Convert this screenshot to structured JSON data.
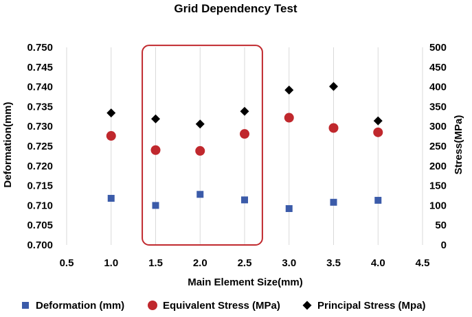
{
  "chart_data": {
    "type": "scatter",
    "title": "Grid Dependency Test",
    "xlabel": "Main Element Size(mm)",
    "ylabel": "Deformation(mm)",
    "y2label": "Stress(MPa)",
    "xlim": [
      0.5,
      4.5
    ],
    "xticks": [
      0.5,
      1.0,
      1.5,
      2.0,
      2.5,
      3.0,
      3.5,
      4.0,
      4.5
    ],
    "xtick_labels": [
      "0.5",
      "1.0",
      "1.5",
      "2.0",
      "2.5",
      "3.0",
      "3.5",
      "4.0",
      "4.5"
    ],
    "ylim": [
      0.7,
      0.75
    ],
    "yticks": [
      0.7,
      0.705,
      0.71,
      0.715,
      0.72,
      0.725,
      0.73,
      0.735,
      0.74,
      0.745,
      0.75
    ],
    "ytick_labels": [
      "0.700",
      "0.705",
      "0.710",
      "0.715",
      "0.720",
      "0.725",
      "0.730",
      "0.735",
      "0.740",
      "0.745",
      "0.750"
    ],
    "y2lim": [
      0,
      500
    ],
    "y2ticks": [
      0,
      50,
      100,
      150,
      200,
      250,
      300,
      350,
      400,
      450,
      500
    ],
    "y2tick_labels": [
      "0",
      "50",
      "100",
      "150",
      "200",
      "250",
      "300",
      "350",
      "400",
      "450",
      "500"
    ],
    "grid": "vertical",
    "legend_position": "bottom",
    "highlight_range_x": [
      1.35,
      2.7
    ],
    "highlight_range_y": [
      0.7,
      0.7505
    ],
    "highlight_color": "#c0282d",
    "series": [
      {
        "name": "Deformation  (mm)",
        "axis": "left",
        "marker": "square",
        "color": "#3b5ba9",
        "x": [
          1.0,
          1.5,
          2.0,
          2.5,
          3.0,
          3.5,
          4.0
        ],
        "y": [
          0.7118,
          0.71,
          0.7128,
          0.7114,
          0.7092,
          0.7108,
          0.7113
        ]
      },
      {
        "name": "Equivalent Stress (MPa)",
        "axis": "right",
        "marker": "circle",
        "color": "#c0282d",
        "x": [
          1.0,
          1.5,
          2.0,
          2.5,
          3.0,
          3.5,
          4.0
        ],
        "y": [
          276,
          240,
          238,
          281,
          322,
          296,
          285
        ]
      },
      {
        "name": "Principal Stress (Mpa)",
        "axis": "right",
        "marker": "diamond",
        "color": "#000000",
        "x": [
          1.0,
          1.5,
          2.0,
          2.5,
          3.0,
          3.5,
          4.0
        ],
        "y": [
          334,
          319,
          306,
          338,
          392,
          401,
          314
        ]
      }
    ]
  }
}
